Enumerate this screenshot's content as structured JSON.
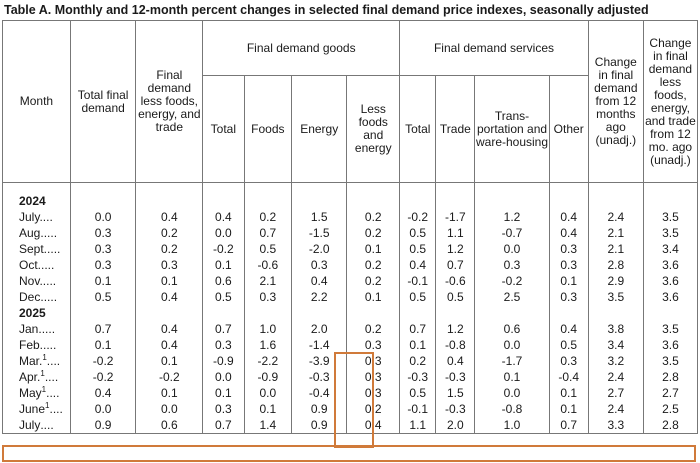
{
  "title": "Table A. Monthly and 12-month percent changes in selected final demand price indexes, seasonally adjusted",
  "headers": {
    "month": "Month",
    "total_final_demand": "Total final demand",
    "fd_less": "Final demand less foods, energy, and trade",
    "goods_group": "Final demand goods",
    "services_group": "Final demand services",
    "goods_total": "Total",
    "goods_foods": "Foods",
    "goods_energy": "Energy",
    "goods_less": "Less foods and energy",
    "services_total": "Total",
    "services_trade": "Trade",
    "services_transport": "Trans-portation and ware-housing",
    "services_other": "Other",
    "change12": "Change in final demand from 12 months ago (unadj.)",
    "change12_less": "Change in final demand less foods, energy, and trade from 12 mo. ago (unadj.)"
  },
  "years": {
    "y2024": "2024",
    "y2025": "2025"
  },
  "rows2024": [
    {
      "month": "July",
      "v": [
        "0.0",
        "0.4",
        "0.4",
        "0.2",
        "1.5",
        "0.2",
        "-0.2",
        "-1.7",
        "1.2",
        "0.4",
        "2.4",
        "3.5"
      ]
    },
    {
      "month": "Aug.",
      "v": [
        "0.3",
        "0.2",
        "0.0",
        "0.7",
        "-1.5",
        "0.2",
        "0.5",
        "1.1",
        "-0.7",
        "0.4",
        "2.1",
        "3.5"
      ]
    },
    {
      "month": "Sept.",
      "v": [
        "0.3",
        "0.2",
        "-0.2",
        "0.5",
        "-2.0",
        "0.1",
        "0.5",
        "1.2",
        "0.0",
        "0.3",
        "2.1",
        "3.4"
      ]
    },
    {
      "month": "Oct.",
      "v": [
        "0.3",
        "0.3",
        "0.1",
        "-0.6",
        "0.3",
        "0.2",
        "0.4",
        "0.7",
        "0.3",
        "0.3",
        "2.8",
        "3.6"
      ]
    },
    {
      "month": "Nov.",
      "v": [
        "0.1",
        "0.1",
        "0.6",
        "2.1",
        "0.4",
        "0.2",
        "-0.1",
        "-0.6",
        "-0.2",
        "0.1",
        "2.9",
        "3.6"
      ]
    },
    {
      "month": "Dec.",
      "v": [
        "0.5",
        "0.4",
        "0.5",
        "0.3",
        "2.2",
        "0.1",
        "0.5",
        "0.5",
        "2.5",
        "0.3",
        "3.5",
        "3.6"
      ]
    }
  ],
  "rows2025": [
    {
      "month": "Jan.",
      "sup": "",
      "v": [
        "0.7",
        "0.4",
        "0.7",
        "1.0",
        "2.0",
        "0.2",
        "0.7",
        "1.2",
        "0.6",
        "0.4",
        "3.8",
        "3.5"
      ]
    },
    {
      "month": "Feb.",
      "sup": "",
      "v": [
        "0.1",
        "0.4",
        "0.3",
        "1.6",
        "-1.4",
        "0.3",
        "0.1",
        "-0.8",
        "0.0",
        "0.5",
        "3.4",
        "3.6"
      ]
    },
    {
      "month": "Mar.",
      "sup": "1",
      "v": [
        "-0.2",
        "0.1",
        "-0.9",
        "-2.2",
        "-3.9",
        "0.3",
        "0.2",
        "0.4",
        "-1.7",
        "0.3",
        "3.2",
        "3.5"
      ]
    },
    {
      "month": "Apr.",
      "sup": "1",
      "v": [
        "-0.2",
        "-0.2",
        "0.0",
        "-0.9",
        "-0.3",
        "0.3",
        "-0.3",
        "-0.3",
        "0.1",
        "-0.4",
        "2.4",
        "2.8"
      ]
    },
    {
      "month": "May",
      "sup": "1",
      "v": [
        "0.4",
        "0.1",
        "0.1",
        "0.0",
        "-0.4",
        "0.3",
        "0.5",
        "1.5",
        "0.0",
        "0.1",
        "2.7",
        "2.7"
      ]
    },
    {
      "month": "June",
      "sup": "1",
      "v": [
        "0.0",
        "0.0",
        "0.3",
        "0.1",
        "0.9",
        "0.2",
        "-0.1",
        "-0.3",
        "-0.8",
        "0.1",
        "2.4",
        "2.5"
      ]
    },
    {
      "month": "July",
      "sup": "",
      "v": [
        "0.9",
        "0.6",
        "0.7",
        "1.4",
        "0.9",
        "0.4",
        "1.1",
        "2.0",
        "1.0",
        "0.7",
        "3.3",
        "2.8"
      ]
    }
  ],
  "leader": "....",
  "highlight_color": "#d07a3a"
}
